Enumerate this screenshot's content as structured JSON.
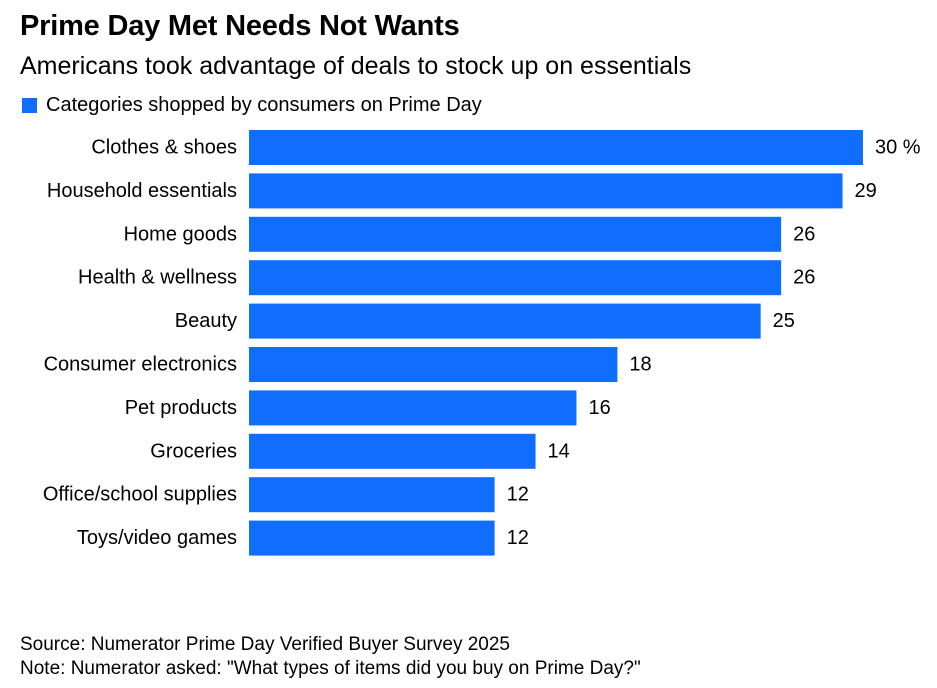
{
  "header": {
    "title": "Prime Day Met Needs Not Wants",
    "subtitle": "Americans took advantage of deals to stock up on essentials"
  },
  "legend": {
    "label": "Categories shopped by consumers on Prime Day"
  },
  "colors": {
    "bar": "#0f6efd",
    "text": "#000000",
    "background": "#ffffff"
  },
  "chart_data": {
    "type": "bar",
    "orientation": "horizontal",
    "categories": [
      "Clothes & shoes",
      "Household essentials",
      "Home goods",
      "Health & wellness",
      "Beauty",
      "Consumer electronics",
      "Pet products",
      "Groceries",
      "Office/school supplies",
      "Toys/video games"
    ],
    "series": [
      {
        "name": "Categories shopped by consumers on Prime Day",
        "values": [
          30,
          29,
          26,
          26,
          25,
          18,
          16,
          14,
          12,
          12
        ]
      }
    ],
    "value_labels": [
      "30 %",
      "29",
      "26",
      "26",
      "25",
      "18",
      "16",
      "14",
      "12",
      "12"
    ],
    "xlim": [
      0,
      30
    ],
    "grid": false,
    "legend_position": "top-left"
  },
  "footer": {
    "source": "Source: Numerator Prime Day Verified Buyer Survey 2025",
    "note": "Note: Numerator asked: \"What types of items did you buy on Prime Day?\""
  }
}
